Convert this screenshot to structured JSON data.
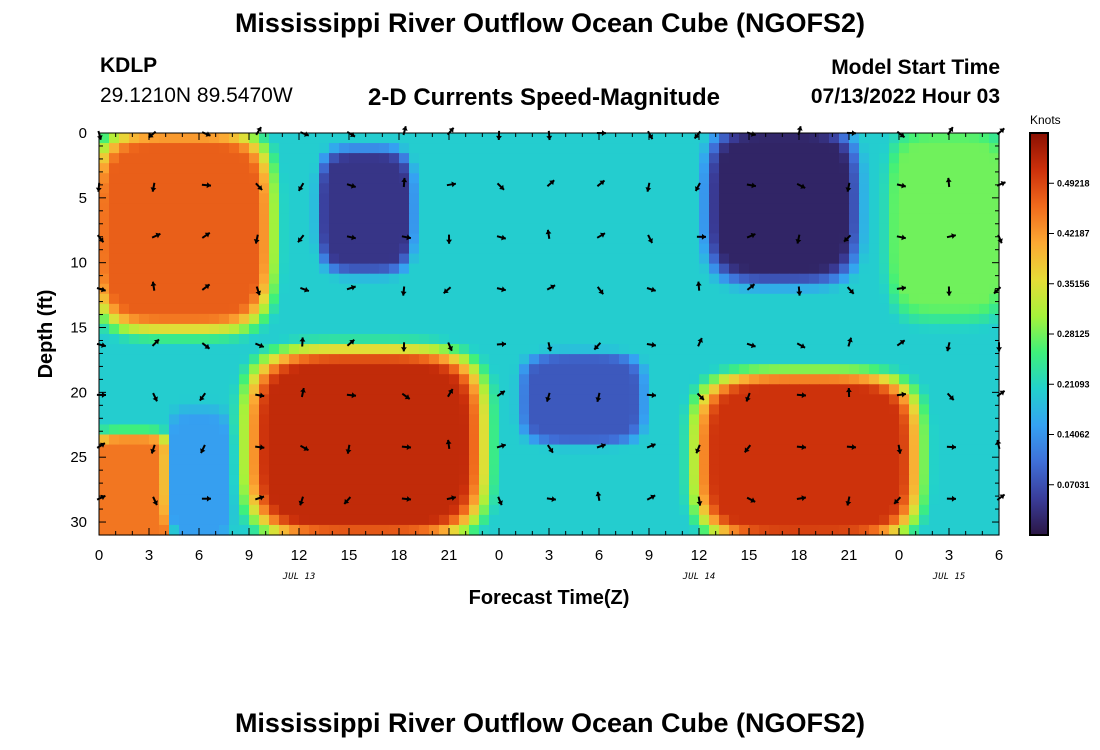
{
  "header": {
    "title": "Mississippi River Outflow Ocean Cube (NGOFS2)",
    "station_id": "KDLP",
    "coordinates": "29.1210N  89.5470W",
    "chart_title": "2-D Currents Speed-Magnitude",
    "start_label": "Model Start Time",
    "start_value": "07/13/2022 Hour 03"
  },
  "footer": {
    "title": "Mississippi River Outflow Ocean Cube (NGOFS2)"
  },
  "chart_data": {
    "type": "heatmap",
    "title": "2-D Currents Speed-Magnitude",
    "xlabel": "Forecast Time(Z)",
    "ylabel": "Depth (ft)",
    "x_range_hours": [
      0,
      54
    ],
    "y_range_ft": [
      0,
      31
    ],
    "y_inverted": true,
    "x_ticks": [
      {
        "hour": 0,
        "label": "0"
      },
      {
        "hour": 3,
        "label": "3"
      },
      {
        "hour": 6,
        "label": "6"
      },
      {
        "hour": 9,
        "label": "9"
      },
      {
        "hour": 12,
        "label": "12"
      },
      {
        "hour": 15,
        "label": "15"
      },
      {
        "hour": 18,
        "label": "18"
      },
      {
        "hour": 21,
        "label": "21"
      },
      {
        "hour": 24,
        "label": "0"
      },
      {
        "hour": 27,
        "label": "3"
      },
      {
        "hour": 30,
        "label": "6"
      },
      {
        "hour": 33,
        "label": "9"
      },
      {
        "hour": 36,
        "label": "12"
      },
      {
        "hour": 39,
        "label": "15"
      },
      {
        "hour": 42,
        "label": "18"
      },
      {
        "hour": 45,
        "label": "21"
      },
      {
        "hour": 48,
        "label": "0"
      },
      {
        "hour": 51,
        "label": "3"
      },
      {
        "hour": 54,
        "label": "6"
      }
    ],
    "y_ticks": [
      0,
      5,
      10,
      15,
      20,
      25,
      30
    ],
    "day_labels": [
      {
        "hour": 12,
        "label": "JUL 13"
      },
      {
        "hour": 36,
        "label": "JUL 14"
      },
      {
        "hour": 51,
        "label": "JUL 15"
      }
    ],
    "colorbar": {
      "title": "Knots",
      "range": [
        0,
        0.5625
      ],
      "ticks": [
        0.07031,
        0.14062,
        0.21093,
        0.28125,
        0.35156,
        0.42187,
        0.49218
      ],
      "tick_labels": [
        "0.07031",
        "0.14062",
        "0.21093",
        "0.28125",
        "0.35156",
        "0.42187",
        "0.49218"
      ],
      "colors": [
        "#2b1644",
        "#3a3d9a",
        "#3f6fd8",
        "#35a2f2",
        "#22d1cc",
        "#3ff07a",
        "#a6f23a",
        "#e6dc37",
        "#fca833",
        "#f06a1c",
        "#cc300b",
        "#8a1002"
      ]
    },
    "speed_regions": [
      {
        "hours": [
          0,
          10
        ],
        "depth_ft": [
          0,
          15
        ],
        "speed": 0.47
      },
      {
        "hours": [
          14,
          18
        ],
        "depth_ft": [
          2,
          10
        ],
        "speed": 0.04
      },
      {
        "hours": [
          37,
          45
        ],
        "depth_ft": [
          0,
          11
        ],
        "speed": 0.02
      },
      {
        "hours": [
          48,
          54
        ],
        "depth_ft": [
          0,
          14
        ],
        "speed": 0.28
      },
      {
        "hours": [
          9,
          23
        ],
        "depth_ft": [
          17,
          31
        ],
        "speed": 0.52
      },
      {
        "hours": [
          0,
          4
        ],
        "depth_ft": [
          24,
          31
        ],
        "speed": 0.45
      },
      {
        "hours": [
          5,
          7
        ],
        "depth_ft": [
          22,
          31
        ],
        "speed": 0.15
      },
      {
        "hours": [
          26,
          32
        ],
        "depth_ft": [
          18,
          23
        ],
        "speed": 0.08
      },
      {
        "hours": [
          36,
          49
        ],
        "depth_ft": [
          19,
          31
        ],
        "speed": 0.51
      }
    ],
    "vector_hours": [
      0,
      3.3,
      6.3,
      9.5,
      12.2,
      15,
      18.3,
      21,
      24,
      27,
      30,
      33,
      36,
      39,
      42,
      45,
      48,
      51,
      54
    ],
    "vector_depths_ft": [
      0,
      4,
      8,
      12,
      16.3,
      20.2,
      24.2,
      28.2
    ]
  }
}
